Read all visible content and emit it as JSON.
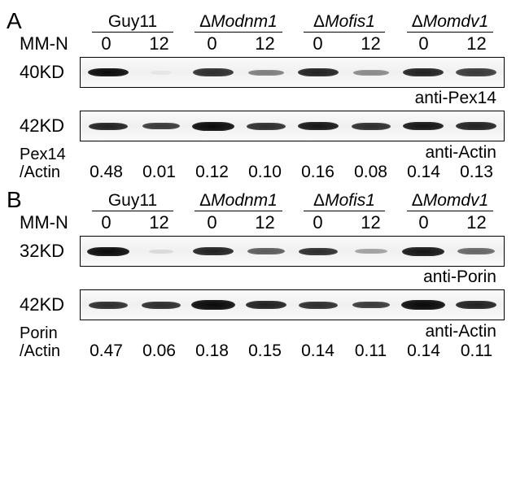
{
  "panels": {
    "A": {
      "letter": "A",
      "strains": [
        "Guy11",
        "ΔModnm1",
        "ΔMofis1",
        "ΔMomdv1"
      ],
      "strain_italic": [
        false,
        true,
        true,
        true
      ],
      "time_label": "MM-N",
      "timepoints": [
        "0",
        "12",
        "0",
        "12",
        "0",
        "12",
        "0",
        "12"
      ],
      "blots": [
        {
          "kd": "40KD",
          "antibody": "anti-Pex14",
          "band_intensity": [
            1.0,
            0.05,
            0.85,
            0.5,
            0.9,
            0.45,
            0.9,
            0.8
          ],
          "band_width": [
            50,
            26,
            50,
            44,
            50,
            44,
            50,
            50
          ],
          "band_height": [
            10,
            5,
            10,
            7,
            10,
            7,
            10,
            10
          ]
        },
        {
          "kd": "42KD",
          "antibody": "anti-Actin",
          "band_intensity": [
            0.9,
            0.8,
            1.0,
            0.85,
            0.95,
            0.85,
            0.95,
            0.9
          ],
          "band_width": [
            48,
            46,
            52,
            48,
            50,
            48,
            50,
            50
          ],
          "band_height": [
            9,
            8,
            11,
            9,
            10,
            9,
            10,
            10
          ]
        }
      ],
      "ratio_label_top": "Pex14",
      "ratio_label_bot": "/Actin",
      "ratios": [
        "0.48",
        "0.01",
        "0.12",
        "0.10",
        "0.16",
        "0.08",
        "0.14",
        "0.13"
      ]
    },
    "B": {
      "letter": "B",
      "strains": [
        "Guy11",
        "ΔModnm1",
        "ΔMofis1",
        "ΔMomdv1"
      ],
      "strain_italic": [
        false,
        true,
        true,
        true
      ],
      "time_label": "MM-N",
      "timepoints": [
        "0",
        "12",
        "0",
        "12",
        "0",
        "12",
        "0",
        "12"
      ],
      "blots": [
        {
          "kd": "32KD",
          "antibody": "anti-Porin",
          "band_intensity": [
            1.0,
            0.1,
            0.9,
            0.65,
            0.85,
            0.35,
            0.95,
            0.6
          ],
          "band_width": [
            52,
            30,
            50,
            46,
            48,
            40,
            52,
            46
          ],
          "band_height": [
            11,
            5,
            10,
            8,
            9,
            6,
            11,
            8
          ]
        },
        {
          "kd": "42KD",
          "antibody": "anti-Actin",
          "band_intensity": [
            0.85,
            0.85,
            1.0,
            0.9,
            0.85,
            0.8,
            1.0,
            0.9
          ],
          "band_width": [
            48,
            48,
            54,
            50,
            48,
            46,
            54,
            50
          ],
          "band_height": [
            9,
            9,
            12,
            10,
            9,
            8,
            12,
            10
          ]
        }
      ],
      "ratio_label_top": "Porin",
      "ratio_label_bot": "/Actin",
      "ratios": [
        "0.47",
        "0.06",
        "0.18",
        "0.15",
        "0.14",
        "0.11",
        "0.14",
        "0.11"
      ]
    }
  },
  "style": {
    "band_color": "#111111",
    "background": "#ffffff",
    "font_family": "Arial",
    "panel_letter_fontsize": 28,
    "label_fontsize": 22,
    "strain_fontsize": 21,
    "ratio_fontsize": 21,
    "blot_border_color": "#000000",
    "blot_bg": "#f6f6f6"
  }
}
